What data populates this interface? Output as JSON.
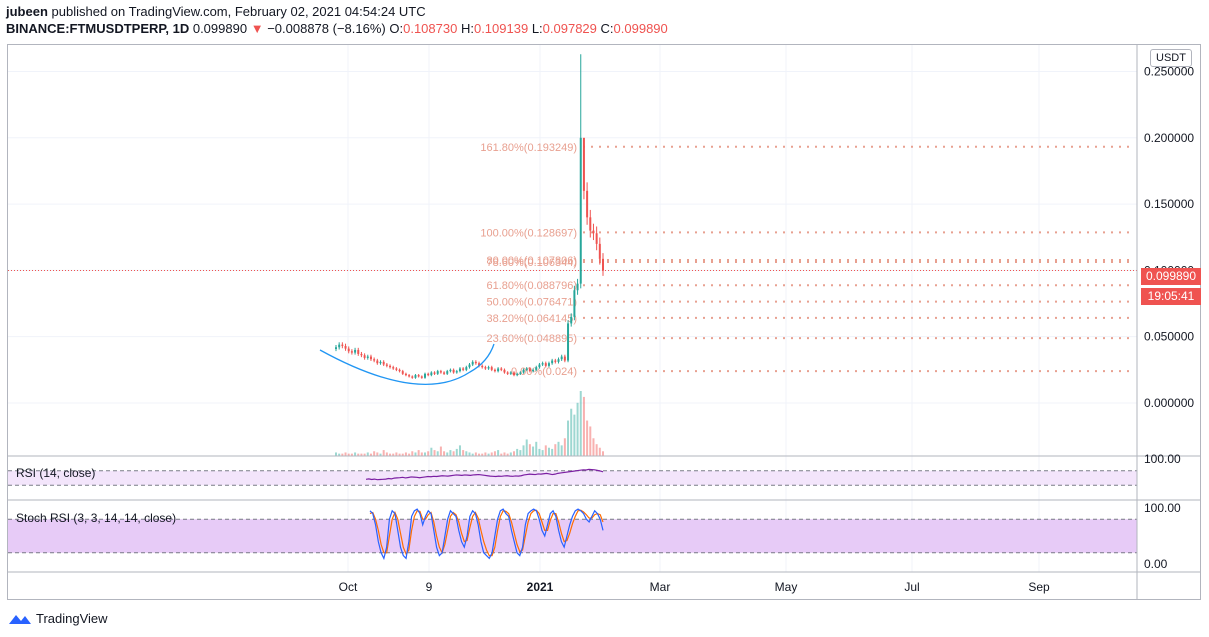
{
  "header": {
    "author": "jubeen",
    "published_text": "published on TradingView.com, February 02, 2021 04:54:24 UTC",
    "symbol": "BINANCE:FTMUSDTPERP, 1D",
    "last": "0.099890",
    "change": "−0.008878 (−8.16%)",
    "o_label": "O:",
    "o": "0.108730",
    "h_label": "H:",
    "h": "0.109139",
    "l_label": "L:",
    "l": "0.097829",
    "c_label": "C:",
    "c": "0.099890"
  },
  "currency_button": "USDT",
  "price_tag": "0.099890",
  "countdown_tag": "19:05:41",
  "rsi_label": "RSI (14, close)",
  "stoch_label": "Stoch RSI (3, 3, 14, 14, close)",
  "branding": "TradingView",
  "colors": {
    "up": "#26a69a",
    "down": "#ef5350",
    "fib": "#e8a090",
    "rsi_line": "#7b1fa2",
    "rsi_band": "#f3e5fb",
    "stoch_band": "#e7cbf7",
    "stoch_k": "#2962ff",
    "stoch_d": "#ff6d00",
    "curve": "#2196f3"
  },
  "chart_data": [
    {
      "type": "candlestick",
      "price_axis": {
        "min": -0.04,
        "max": 0.27,
        "ticks": [
          "0.250000",
          "0.200000",
          "0.150000",
          "0.100000",
          "0.050000",
          "0.000000"
        ],
        "tick_values": [
          0.25,
          0.2,
          0.15,
          0.1,
          0.05,
          0.0
        ]
      },
      "time_axis": {
        "labels": [
          "Oct",
          "9",
          "2021",
          "Mar",
          "May",
          "Jul",
          "Sep"
        ]
      },
      "current_price": 0.09989,
      "fib_levels": [
        {
          "label": "161.80%(0.193249)",
          "value": 0.193249
        },
        {
          "label": "100.00%(0.128697)",
          "value": 0.128697
        },
        {
          "label": "80.00%(0.107806)",
          "value": 0.107806
        },
        {
          "label": "78.60%(0.106344)",
          "value": 0.106344
        },
        {
          "label": "61.80%(0.088796)",
          "value": 0.088796
        },
        {
          "label": "50.00%(0.076471)",
          "value": 0.076471
        },
        {
          "label": "38.20%(0.064145)",
          "value": 0.064145
        },
        {
          "label": "23.60%(0.048895)",
          "value": 0.048895
        },
        {
          "label": "0.00%(0.024)",
          "value": 0.024
        }
      ],
      "closes": [
        0.042,
        0.044,
        0.043,
        0.041,
        0.039,
        0.038,
        0.04,
        0.037,
        0.036,
        0.034,
        0.035,
        0.033,
        0.032,
        0.03,
        0.031,
        0.029,
        0.028,
        0.027,
        0.026,
        0.025,
        0.024,
        0.022,
        0.021,
        0.02,
        0.019,
        0.021,
        0.02,
        0.019,
        0.022,
        0.021,
        0.023,
        0.022,
        0.024,
        0.023,
        0.022,
        0.024,
        0.025,
        0.023,
        0.024,
        0.026,
        0.025,
        0.027,
        0.029,
        0.031,
        0.03,
        0.028,
        0.027,
        0.026,
        0.027,
        0.025,
        0.024,
        0.026,
        0.025,
        0.023,
        0.022,
        0.023,
        0.021,
        0.022,
        0.023,
        0.025,
        0.026,
        0.024,
        0.025,
        0.027,
        0.029,
        0.03,
        0.028,
        0.03,
        0.032,
        0.031,
        0.033,
        0.035,
        0.032,
        0.06,
        0.065,
        0.085,
        0.09,
        0.2,
        0.16,
        0.14,
        0.13,
        0.128,
        0.12,
        0.1087,
        0.09989
      ],
      "volumes": [
        3,
        2,
        2,
        3,
        2,
        2,
        3,
        2,
        2,
        2,
        3,
        2,
        4,
        3,
        2,
        5,
        3,
        2,
        2,
        3,
        2,
        2,
        3,
        2,
        4,
        3,
        5,
        3,
        3,
        4,
        7,
        5,
        4,
        8,
        4,
        3,
        5,
        4,
        6,
        9,
        5,
        4,
        3,
        2,
        3,
        2,
        2,
        3,
        2,
        3,
        4,
        5,
        2,
        3,
        2,
        3,
        4,
        6,
        5,
        9,
        14,
        10,
        8,
        12,
        6,
        5,
        9,
        7,
        6,
        10,
        12,
        9,
        15,
        30,
        40,
        35,
        45,
        55,
        50,
        30,
        25,
        15,
        10,
        7,
        4
      ]
    },
    {
      "type": "line",
      "name": "RSI",
      "ylim": [
        0,
        100
      ],
      "ticks": [
        "100.00"
      ],
      "values": [
        48,
        50,
        47,
        49,
        46,
        47,
        48,
        49,
        52,
        50,
        54,
        55,
        56,
        58,
        55,
        57,
        60,
        59,
        58,
        56,
        58,
        60,
        62,
        61,
        63,
        62,
        64,
        66,
        65,
        64,
        66,
        68,
        70,
        69,
        68,
        70,
        69,
        68,
        70,
        71,
        72,
        70,
        68,
        66,
        64,
        63,
        62,
        64,
        63,
        65,
        66,
        64,
        63,
        65,
        64,
        66,
        70,
        72,
        74,
        73,
        72,
        75,
        74,
        76,
        78,
        75,
        72,
        74,
        78,
        80,
        82,
        84,
        86,
        88,
        90,
        92,
        94,
        96,
        95,
        98,
        97,
        96,
        93,
        90,
        86
      ]
    },
    {
      "type": "line",
      "name": "Stoch RSI",
      "ylim": [
        0,
        100
      ],
      "ticks": [
        "100.00",
        "0.00"
      ],
      "k": [
        95,
        90,
        70,
        40,
        20,
        10,
        30,
        80,
        95,
        90,
        60,
        30,
        15,
        10,
        40,
        85,
        95,
        98,
        90,
        70,
        85,
        95,
        90,
        60,
        30,
        15,
        20,
        50,
        80,
        95,
        90,
        85,
        60,
        40,
        30,
        50,
        85,
        95,
        90,
        70,
        40,
        20,
        15,
        10,
        20,
        50,
        80,
        95,
        98,
        90,
        85,
        60,
        40,
        20,
        15,
        30,
        70,
        90,
        95,
        98,
        95,
        80,
        60,
        50,
        70,
        90,
        95,
        85,
        60,
        40,
        30,
        50,
        70,
        85,
        95,
        98,
        95,
        90,
        80,
        75,
        85,
        95,
        90,
        80,
        60
      ],
      "d": [
        90,
        92,
        80,
        60,
        35,
        20,
        20,
        50,
        80,
        92,
        80,
        55,
        30,
        18,
        25,
        60,
        85,
        95,
        94,
        80,
        80,
        88,
        92,
        75,
        50,
        30,
        20,
        35,
        60,
        85,
        92,
        88,
        75,
        55,
        40,
        42,
        65,
        85,
        92,
        82,
        60,
        40,
        25,
        15,
        15,
        30,
        60,
        85,
        95,
        94,
        90,
        75,
        55,
        35,
        22,
        25,
        50,
        75,
        90,
        95,
        96,
        90,
        75,
        60,
        60,
        78,
        90,
        90,
        75,
        55,
        40,
        42,
        55,
        72,
        85,
        95,
        96,
        93,
        88,
        82,
        82,
        88,
        90,
        88,
        75
      ]
    }
  ]
}
